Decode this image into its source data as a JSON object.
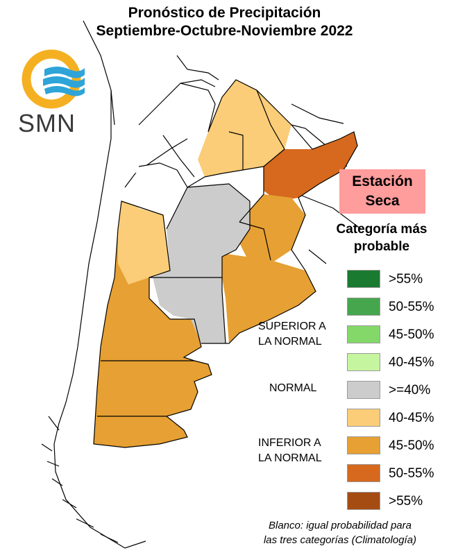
{
  "title": {
    "line1": "Pronóstico de Precipitación",
    "line2": "Septiembre-Octubre-Noviembre 2022"
  },
  "logo": {
    "text": "SMN",
    "colors": {
      "ring": "#f5b021",
      "waves": "#2ea4d8",
      "text": "#3a3a3a"
    }
  },
  "season_label": {
    "line1": "Estación",
    "line2": "Seca"
  },
  "legend": {
    "title_line1": "Categoría más",
    "title_line2": "probable",
    "groups": [
      {
        "line1": "SUPERIOR A",
        "line2": "LA NORMAL"
      },
      {
        "line1": "NORMAL",
        "line2": ""
      },
      {
        "line1": "INFERIOR A",
        "line2": "LA NORMAL"
      }
    ],
    "items": [
      {
        "label": ">55%",
        "color": "#1a7a30"
      },
      {
        "label": "50-55%",
        "color": "#45a64e"
      },
      {
        "label": "45-50%",
        "color": "#84d86a"
      },
      {
        "label": "40-45%",
        "color": "#c6f5a0"
      },
      {
        "label": ">=40%",
        "color": "#cccccc"
      },
      {
        "label": "40-45%",
        "color": "#fbcd78"
      },
      {
        "label": "45-50%",
        "color": "#e6a033"
      },
      {
        "label": "50-55%",
        "color": "#d6691d"
      },
      {
        "label": ">55%",
        "color": "#a54c12"
      }
    ]
  },
  "footnote": {
    "line1": "Blanco: igual probabilidad para",
    "line2": "las tres categorías (Climatología)"
  },
  "map_colors": {
    "light_orange": "#fbcd78",
    "medium_orange": "#e6a033",
    "dark_orange": "#d6691d",
    "gray": "#cccccc",
    "outline": "#000000"
  }
}
